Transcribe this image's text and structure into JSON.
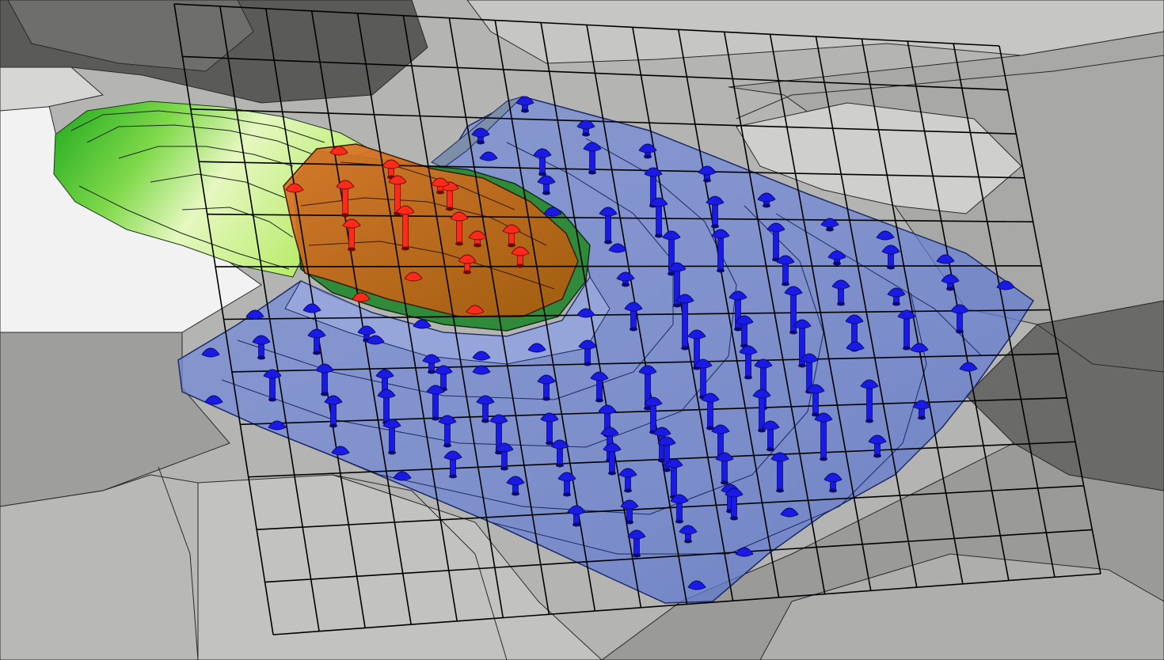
{
  "diagram": {
    "kind": "3d-terrain-model",
    "text_labels": [],
    "palette": {
      "terrain_light": "#d4d4d2",
      "terrain_mid": "#b2b2b0",
      "terrain_dark": "#6c6c6a",
      "terrain_white": "#f4f4f4",
      "mound_dark": "#1ea81e",
      "mound_light": "#e6f7c0",
      "wedge_fill": "#c86c10",
      "wedge_band": "#2f8a3a",
      "basin_fill": "#6e85d8",
      "basin_light": "#a9b7e6",
      "blue_pin": "#1a1ae6",
      "red_pin": "#ff2b1a",
      "grid_line": "#000000",
      "contour_line": "#1c1c2c"
    },
    "grid": {
      "columns": 18,
      "rows": 12
    },
    "layers": [
      {
        "name": "terrain-surface",
        "color": "terrain_mid"
      },
      {
        "name": "green-mound",
        "color": "mound_dark"
      },
      {
        "name": "blue-basin",
        "color": "basin_fill"
      },
      {
        "name": "orange-wedge",
        "color": "wedge_fill"
      },
      {
        "name": "wire-grid",
        "color": "grid_line"
      }
    ],
    "marker_counts": {
      "blue_pins": 130,
      "red_pins": 17
    }
  }
}
